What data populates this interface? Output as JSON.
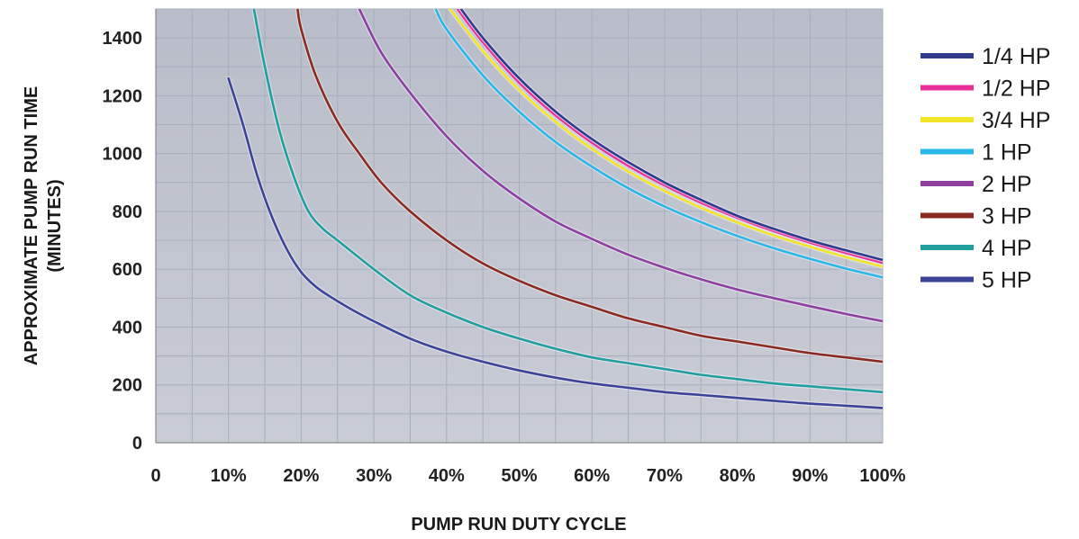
{
  "chart_data": {
    "type": "line",
    "title": "",
    "xlabel": "PUMP RUN DUTY CYCLE",
    "ylabel": [
      "APPROXIMATE PUMP RUN TIME",
      "(MINUTES)"
    ],
    "xlim": [
      0,
      100
    ],
    "ylim": [
      0,
      1500
    ],
    "x_ticks": [
      0,
      10,
      20,
      30,
      40,
      50,
      60,
      70,
      80,
      90,
      100
    ],
    "x_tick_labels": [
      "0",
      "10%",
      "20%",
      "30%",
      "40%",
      "50%",
      "60%",
      "70%",
      "80%",
      "90%",
      "100%"
    ],
    "y_ticks": [
      0,
      200,
      400,
      600,
      800,
      1000,
      1200,
      1400
    ],
    "y_tick_labels": [
      "0",
      "200",
      "400",
      "600",
      "800",
      "1000",
      "1200",
      "1400"
    ],
    "grid": true,
    "legend_position": "right",
    "series": [
      {
        "name": "1/4 HP",
        "color": "#2e3a8c",
        "x": [
          42,
          45,
          50,
          55,
          60,
          65,
          70,
          75,
          80,
          85,
          90,
          95,
          100
        ],
        "y": [
          1500,
          1400,
          1260,
          1145,
          1050,
          970,
          900,
          840,
          785,
          740,
          700,
          665,
          632
        ]
      },
      {
        "name": "1/2 HP",
        "color": "#e8309a",
        "x": [
          41.5,
          45,
          50,
          55,
          60,
          65,
          70,
          75,
          80,
          85,
          90,
          95,
          100
        ],
        "y": [
          1500,
          1385,
          1245,
          1132,
          1038,
          958,
          890,
          830,
          778,
          732,
          692,
          656,
          622
        ]
      },
      {
        "name": "3/4 HP",
        "color": "#f2e528",
        "x": [
          40.5,
          45,
          50,
          55,
          60,
          65,
          70,
          75,
          80,
          85,
          90,
          95,
          100
        ],
        "y": [
          1500,
          1355,
          1220,
          1110,
          1017,
          938,
          871,
          813,
          762,
          717,
          678,
          642,
          609
        ]
      },
      {
        "name": "1 HP",
        "color": "#29b6e8",
        "x": [
          38.5,
          40,
          45,
          50,
          55,
          60,
          65,
          70,
          75,
          80,
          85,
          90,
          95,
          100
        ],
        "y": [
          1500,
          1430,
          1270,
          1145,
          1040,
          955,
          880,
          817,
          763,
          715,
          673,
          636,
          602,
          572
        ]
      },
      {
        "name": "2 HP",
        "color": "#8e3fa0",
        "x": [
          28,
          31,
          35,
          40,
          45,
          50,
          55,
          60,
          65,
          70,
          75,
          80,
          85,
          90,
          95,
          100
        ],
        "y": [
          1500,
          1350,
          1210,
          1060,
          940,
          845,
          765,
          705,
          650,
          605,
          565,
          530,
          500,
          472,
          445,
          420
        ]
      },
      {
        "name": "3 HP",
        "color": "#8b2a20",
        "x": [
          19.5,
          20,
          22,
          25,
          28,
          31,
          35,
          40,
          45,
          50,
          55,
          60,
          65,
          70,
          75,
          80,
          85,
          90,
          95,
          100
        ],
        "y": [
          1500,
          1430,
          1270,
          1110,
          1000,
          900,
          800,
          700,
          620,
          560,
          510,
          470,
          430,
          400,
          370,
          350,
          330,
          310,
          295,
          280
        ]
      },
      {
        "name": "4 HP",
        "color": "#219e9e",
        "x": [
          13.5,
          15,
          17,
          19,
          21,
          23,
          25,
          30,
          35,
          40,
          45,
          50,
          55,
          60,
          65,
          70,
          75,
          80,
          85,
          90,
          95,
          100
        ],
        "y": [
          1500,
          1300,
          1080,
          920,
          800,
          740,
          700,
          600,
          510,
          450,
          400,
          360,
          325,
          295,
          275,
          255,
          235,
          220,
          205,
          195,
          185,
          175
        ]
      },
      {
        "name": "5 HP",
        "color": "#3c4398",
        "x": [
          10,
          12,
          14,
          16,
          18,
          20,
          22,
          24,
          27,
          30,
          35,
          40,
          45,
          50,
          55,
          60,
          65,
          70,
          75,
          80,
          85,
          90,
          95,
          100
        ],
        "y": [
          1260,
          1100,
          920,
          780,
          670,
          590,
          540,
          505,
          460,
          420,
          360,
          315,
          280,
          250,
          225,
          205,
          190,
          175,
          165,
          155,
          145,
          135,
          128,
          120
        ]
      }
    ]
  }
}
